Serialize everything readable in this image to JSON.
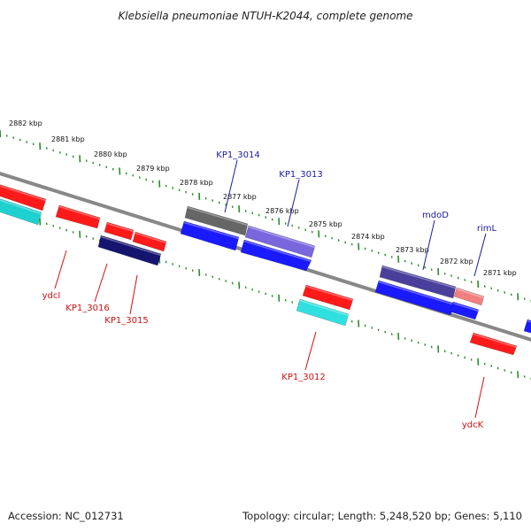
{
  "title": "Klebsiella pneumoniae NTUH-K2044, complete genome",
  "footer": {
    "accession": "Accession: NC_012731",
    "topology": "Topology: circular; Length: 5,248,520 bp; Genes: 5,110"
  },
  "colors": {
    "backbone": "#888888",
    "ticks": "#2e8b2e",
    "label_top": "#1a1aa6",
    "label_bottom": "#cc1111"
  },
  "kbp_labels": [
    "2882 kbp",
    "2881 kbp",
    "2880 kbp",
    "2879 kbp",
    "2878 kbp",
    "2877 kbp",
    "2876 kbp",
    "2875 kbp",
    "2874 kbp",
    "2873 kbp",
    "2872 kbp",
    "2871 kbp"
  ],
  "genes": [
    {
      "id": "g1",
      "color": "#ff1a1a"
    },
    {
      "id": "g2",
      "color": "#20d0d0"
    },
    {
      "id": "g3",
      "color": "#ff1a1a"
    },
    {
      "id": "g4",
      "color": "#ff1a1a"
    },
    {
      "id": "g5",
      "color": "#ff1a1a"
    },
    {
      "id": "g6",
      "color": "#151570"
    },
    {
      "id": "g7",
      "color": "#666666"
    },
    {
      "id": "g8",
      "color": "#1a1aff"
    },
    {
      "id": "g9",
      "color": "#7a66dd"
    },
    {
      "id": "g10",
      "color": "#1a1aff"
    },
    {
      "id": "g11",
      "color": "#ff1a1a"
    },
    {
      "id": "g12",
      "color": "#30e0e0"
    },
    {
      "id": "g13",
      "color": "#4a3f9a"
    },
    {
      "id": "g14",
      "color": "#1a1aff"
    },
    {
      "id": "g15",
      "color": "#f08080"
    },
    {
      "id": "g16",
      "color": "#1a1aff"
    },
    {
      "id": "g17",
      "color": "#ff1a1a"
    },
    {
      "id": "g18",
      "color": "#1a1aff"
    }
  ],
  "labels": [
    {
      "text": "KP1_3014",
      "side": "top"
    },
    {
      "text": "KP1_3013",
      "side": "top"
    },
    {
      "text": "mdoD",
      "side": "top"
    },
    {
      "text": "rimL",
      "side": "top"
    },
    {
      "text": "ydcI",
      "side": "bottom"
    },
    {
      "text": "KP1_3016",
      "side": "bottom"
    },
    {
      "text": "KP1_3015",
      "side": "bottom"
    },
    {
      "text": "KP1_3012",
      "side": "bottom"
    },
    {
      "text": "ydcK",
      "side": "bottom"
    }
  ]
}
